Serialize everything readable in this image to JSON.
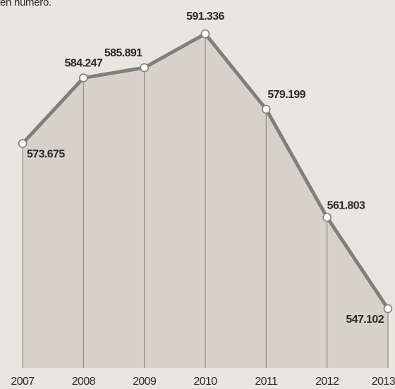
{
  "header": {
    "note": "en número."
  },
  "colors": {
    "background": "#e9e6df",
    "area": "#cfcbc3",
    "line": "#7f7f7f",
    "marker_fill": "#ffffff",
    "gridline": "#8d8a84",
    "text": "#2a2a2a"
  },
  "chart_data": {
    "type": "area",
    "title": "",
    "xlabel": "",
    "ylabel": "",
    "categories": [
      "2007",
      "2008",
      "2009",
      "2010",
      "2011",
      "2012",
      "2013"
    ],
    "values": [
      573675,
      584247,
      585891,
      591336,
      579199,
      561803,
      547102
    ],
    "value_labels": [
      "573.675",
      "584.247",
      "585.891",
      "591.336",
      "579.199",
      "561.803",
      "547.102"
    ],
    "ylim": [
      535000,
      595000
    ],
    "grid": "vertical drop lines at each point",
    "legend": "none",
    "markers": "hollow circles"
  }
}
